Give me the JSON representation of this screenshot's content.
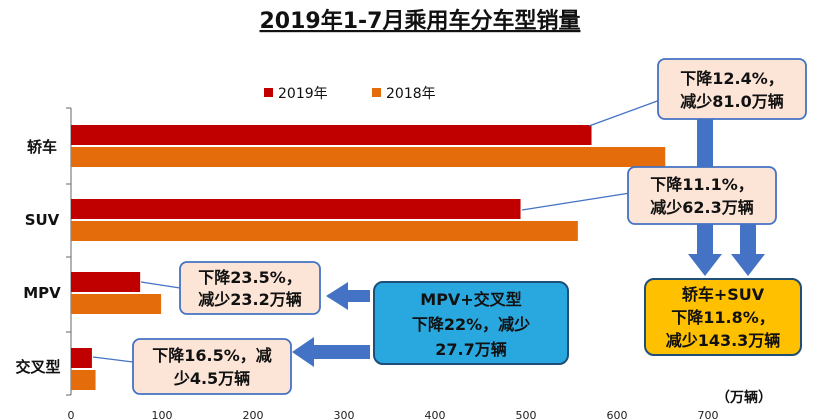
{
  "chart_data": {
    "type": "bar",
    "orientation": "horizontal",
    "title": "2019年1-7月乘用车分车型销量",
    "categories": [
      "轿车",
      "SUV",
      "MPV",
      "交叉型"
    ],
    "series": [
      {
        "name": "2019年",
        "color": "#C00000",
        "values": [
          572,
          494,
          76,
          23
        ]
      },
      {
        "name": "2018年",
        "color": "#E46C0A",
        "values": [
          653,
          557,
          99,
          27
        ]
      }
    ],
    "xlim": [
      0,
      700
    ],
    "xticks": [
      0,
      100,
      200,
      300,
      400,
      500,
      600,
      700
    ],
    "unit": "（万辆）",
    "legend": "top"
  },
  "annotations": {
    "sedan": [
      "下降12.4%，",
      "减少81.0万辆"
    ],
    "suv": [
      "下降11.1%，",
      "减少62.3万辆"
    ],
    "mpv": [
      "下降23.5%，",
      "减少23.2万辆"
    ],
    "crossover": [
      "下降16.5%，减",
      "少4.5万辆"
    ],
    "mpv_crossover": [
      "MPV+交叉型",
      "下降22%，减少",
      "27.7万辆"
    ],
    "sedan_suv": [
      "轿车+SUV",
      "下降11.8%，",
      "减少143.3万辆"
    ]
  },
  "colors": {
    "callout_fill": "#FCE4D6",
    "callout_border": "#4472C4",
    "arrow": "#4472C4",
    "blue_box": "#29A8E0",
    "yellow_box": "#FFC000"
  }
}
